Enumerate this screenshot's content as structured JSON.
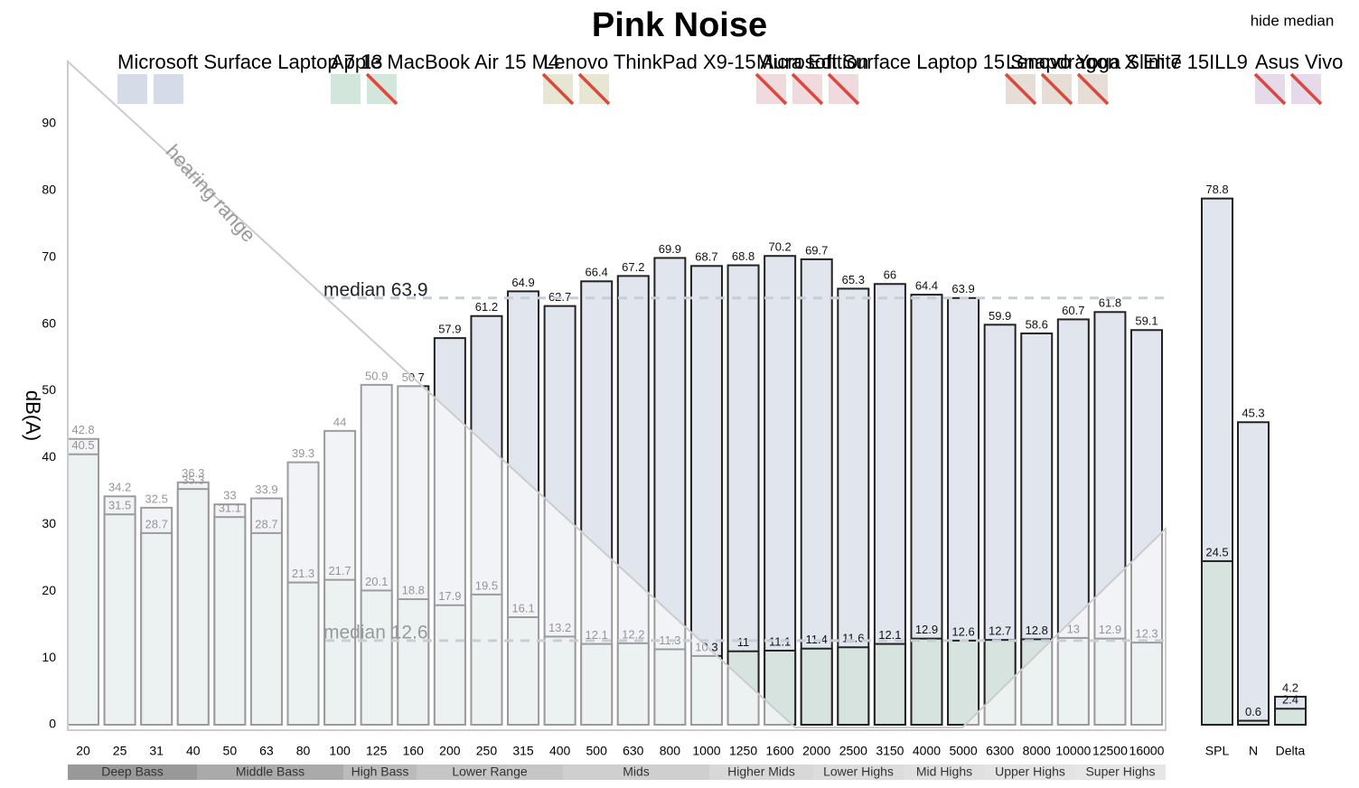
{
  "chart_data": {
    "type": "bar",
    "title": "Pink Noise",
    "y_label": "dB(A)",
    "button": "hide median",
    "annotation": "hearing range",
    "devices": [
      {
        "name": "Microsoft Surface Laptop 7 13",
        "color": "#d5dce8"
      },
      {
        "name": "Apple MacBook Air 15 M4",
        "color": "#d3e6dc"
      },
      {
        "name": "Lenovo ThinkPad X9-15 Aura Edition",
        "color": "#e6e6d2"
      },
      {
        "name": "Microsoft Surface Laptop 15 Snapdragon X Elite",
        "color": "#f0dadd"
      },
      {
        "name": "Lenovo Yoga Slim 7 15ILL9",
        "color": "#e6ddd6"
      },
      {
        "name": "Asus Vivo",
        "color": "#e6d9ea"
      }
    ],
    "categories": [
      "20",
      "25",
      "31",
      "40",
      "50",
      "63",
      "80",
      "100",
      "125",
      "160",
      "200",
      "250",
      "315",
      "400",
      "500",
      "630",
      "800",
      "1000",
      "1250",
      "1600",
      "2000",
      "2500",
      "3150",
      "4000",
      "5000",
      "6300",
      "8000",
      "10000",
      "12500",
      "16000"
    ],
    "series": [
      {
        "color": "#e1e5ee",
        "values": [
          42.8,
          34.2,
          32.5,
          36.3,
          33,
          33.9,
          39.3,
          44,
          50.9,
          50.7,
          57.9,
          61.2,
          64.9,
          62.7,
          66.4,
          67.2,
          69.9,
          68.7,
          68.8,
          70.2,
          69.7,
          65.3,
          66,
          64.4,
          63.9,
          59.9,
          58.6,
          60.7,
          61.8,
          59.1
        ]
      },
      {
        "color": "#d6e3df",
        "values": [
          40.5,
          31.5,
          28.7,
          35.3,
          31.1,
          28.7,
          21.3,
          21.7,
          20.1,
          18.8,
          17.9,
          19.5,
          16.1,
          13.2,
          12.1,
          12.2,
          11.3,
          10.3,
          11,
          11.1,
          11.4,
          11.6,
          12.1,
          12.9,
          12.6,
          12.7,
          12.8,
          13,
          12.9,
          12.3
        ]
      }
    ],
    "summary_categories": [
      "SPL",
      "N",
      "Delta"
    ],
    "summary_series": [
      {
        "color": "#e1e5ee",
        "values": [
          78.8,
          45.3,
          4.2
        ]
      },
      {
        "color": "#d6e3df",
        "values": [
          24.5,
          0.6,
          2.4
        ]
      }
    ],
    "medians": [
      63.9,
      12.6
    ],
    "median_labels": [
      "median 63.9",
      "median 12.6"
    ],
    "bands": [
      "Deep Bass",
      "Middle Bass",
      "High Bass",
      "Lower Range",
      "Mids",
      "Higher Mids",
      "Lower Highs",
      "Mid Highs",
      "Upper Highs",
      "Super Highs"
    ],
    "ylim": [
      0,
      100
    ],
    "yticks": [
      0,
      10,
      20,
      30,
      40,
      50,
      60,
      70,
      80,
      90
    ]
  }
}
